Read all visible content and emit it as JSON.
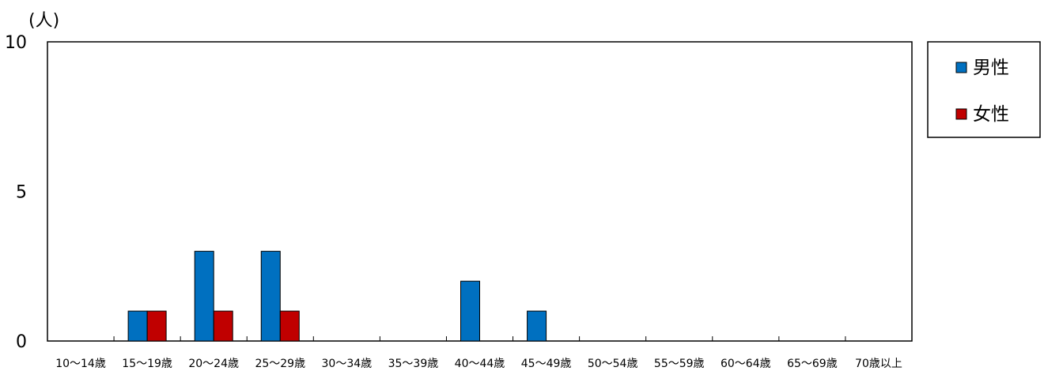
{
  "chart_data": {
    "type": "bar",
    "ylabel": "(人)",
    "ylim": [
      0,
      10
    ],
    "yticks": [
      "0",
      "5",
      "10"
    ],
    "categories": [
      "10〜14歳",
      "15〜19歳",
      "20〜24歳",
      "25〜29歳",
      "30〜34歳",
      "35〜39歳",
      "40〜44歳",
      "45〜49歳",
      "50〜54歳",
      "55〜59歳",
      "60〜64歳",
      "65〜69歳",
      "70歳以上"
    ],
    "series": [
      {
        "name": "男性",
        "color": "#0070c0",
        "values": [
          0,
          1,
          3,
          3,
          0,
          0,
          2,
          1,
          0,
          0,
          0,
          0,
          0
        ]
      },
      {
        "name": "女性",
        "color": "#c00000",
        "values": [
          0,
          1,
          1,
          1,
          0,
          0,
          0,
          0,
          0,
          0,
          0,
          0,
          0
        ]
      }
    ],
    "grid": false,
    "legend_position": "right"
  }
}
